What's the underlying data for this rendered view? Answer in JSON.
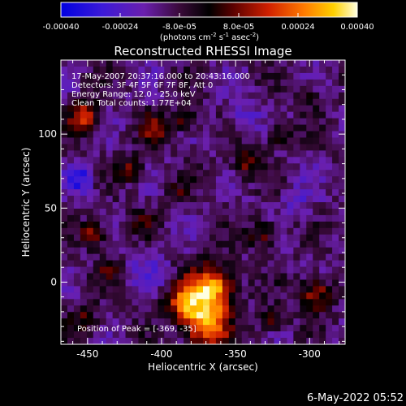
{
  "colorbar": {
    "ticks": [
      "-0.00040",
      "-0.00024",
      "-8.0e-05",
      "8.0e-05",
      "0.00024",
      "0.00040"
    ],
    "units_main": "(photons cm",
    "units_sup1": "-2",
    "units_mid1": " s",
    "units_sup2": "-1",
    "units_mid2": " asec",
    "units_sup3": "-2",
    "units_end": ")",
    "range": [
      -0.0004,
      0.0004
    ],
    "colormap": "red-temperature with blue negatives"
  },
  "plot": {
    "title": "Reconstructed RHESSI Image",
    "xlabel": "Heliocentric X (arcsec)",
    "ylabel": "Heliocentric Y (arcsec)",
    "xticks": [
      "-450",
      "-400",
      "-350",
      "-300"
    ],
    "yticks": [
      "0",
      "50",
      "100"
    ],
    "info_lines": [
      "17-May-2007 20:37:16.000 to 20:43:16.000",
      "Detectors: 3F 4F 5F 6F 7F 8F, Att 0",
      "Energy Range: 12.0 - 25.0 keV",
      "Clean     Total counts: 1.77E+04"
    ],
    "peak_label": "Position of Peak = [-369, -35]",
    "timestamp": "6-May-2022 05:52"
  },
  "chart_data": {
    "type": "heatmap",
    "title": "Reconstructed RHESSI Image",
    "xlabel": "Heliocentric X (arcsec)",
    "ylabel": "Heliocentric Y (arcsec)",
    "xlim": [
      -468,
      -276
    ],
    "ylim": [
      -42,
      150
    ],
    "zlim": [
      -0.0004,
      0.0004
    ],
    "peak": [
      -369,
      -35
    ],
    "sources": [
      {
        "x": -366,
        "y": -5,
        "amp": 0.00045,
        "sigma": 11
      },
      {
        "x": -370,
        "y": -30,
        "amp": 0.0004,
        "sigma": 10
      },
      {
        "x": -385,
        "y": -15,
        "amp": 0.0003,
        "sigma": 9
      },
      {
        "x": -452,
        "y": 112,
        "amp": 0.00032,
        "sigma": 7
      },
      {
        "x": -446,
        "y": 32,
        "amp": 0.00024,
        "sigma": 6
      },
      {
        "x": -403,
        "y": 104,
        "amp": 0.00022,
        "sigma": 7
      },
      {
        "x": -383,
        "y": 110,
        "amp": 0.0002,
        "sigma": 6
      },
      {
        "x": -421,
        "y": 76,
        "amp": 0.0002,
        "sigma": 6
      },
      {
        "x": -342,
        "y": 80,
        "amp": 0.00018,
        "sigma": 7
      },
      {
        "x": -321,
        "y": 100,
        "amp": 0.00016,
        "sigma": 6
      },
      {
        "x": -300,
        "y": 125,
        "amp": 0.00015,
        "sigma": 5
      },
      {
        "x": -331,
        "y": 32,
        "amp": 0.00018,
        "sigma": 7
      },
      {
        "x": -296,
        "y": -8,
        "amp": 0.00026,
        "sigma": 8
      },
      {
        "x": -325,
        "y": -25,
        "amp": 0.00018,
        "sigma": 6
      },
      {
        "x": -452,
        "y": -25,
        "amp": 0.00015,
        "sigma": 7
      },
      {
        "x": -412,
        "y": 40,
        "amp": 0.00014,
        "sigma": 6
      },
      {
        "x": -390,
        "y": 60,
        "amp": 0.00012,
        "sigma": 5
      },
      {
        "x": -435,
        "y": 8,
        "amp": 0.00012,
        "sigma": 6
      },
      {
        "x": -395,
        "y": 20,
        "amp": 0.0001,
        "sigma": 5
      },
      {
        "x": -455,
        "y": 70,
        "amp": -0.0002,
        "sigma": 7
      },
      {
        "x": -405,
        "y": 12,
        "amp": -0.0001,
        "sigma": 10
      },
      {
        "x": -345,
        "y": 112,
        "amp": -0.0001,
        "sigma": 8
      },
      {
        "x": -308,
        "y": 55,
        "amp": -8e-05,
        "sigma": 8
      }
    ]
  }
}
